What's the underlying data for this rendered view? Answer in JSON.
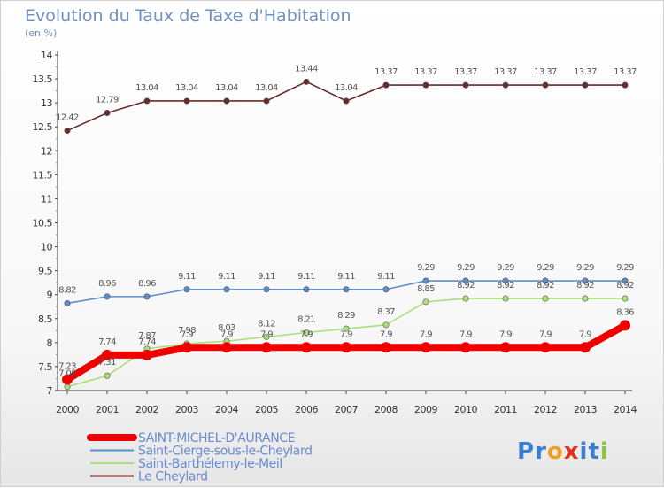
{
  "chart_data": {
    "type": "line",
    "title": "Evolution du Taux de Taxe d'Habitation",
    "subtitle": "(en %)",
    "x": [
      "2000",
      "2001",
      "2002",
      "2003",
      "2004",
      "2005",
      "2006",
      "2007",
      "2008",
      "2009",
      "2010",
      "2011",
      "2012",
      "2013",
      "2014"
    ],
    "ylim": [
      7,
      14
    ],
    "yticks": [
      "7",
      "7.5",
      "8",
      "8.5",
      "9",
      "9.5",
      "10",
      "10.5",
      "11",
      "11.5",
      "12",
      "12.5",
      "13",
      "13.5",
      "14"
    ],
    "grid": false,
    "legend_position": "bottom-left",
    "series": [
      {
        "name": "Le Cheylard",
        "color": "#6b2a2a",
        "values": [
          12.42,
          12.79,
          13.04,
          13.04,
          13.04,
          13.04,
          13.44,
          13.04,
          13.37,
          13.37,
          13.37,
          13.37,
          13.37,
          13.37,
          13.37
        ],
        "labels": [
          "12.42",
          "12.79",
          "13.04",
          "13.04",
          "13.04",
          "13.04",
          "13.44",
          "13.04",
          "13.37",
          "13.37",
          "13.37",
          "13.37",
          "13.37",
          "13.37",
          "13.37"
        ]
      },
      {
        "name": "Saint-Cierge-sous-le-Cheylard",
        "color": "#5b8fc8",
        "values": [
          8.82,
          8.96,
          8.96,
          9.11,
          9.11,
          9.11,
          9.11,
          9.11,
          9.11,
          9.29,
          9.29,
          9.29,
          9.29,
          9.29,
          9.29
        ],
        "labels": [
          "8.82",
          "8.96",
          "8.96",
          "9.11",
          "9.11",
          "9.11",
          "9.11",
          "9.11",
          "9.11",
          "9.29",
          "9.29",
          "9.29",
          "9.29",
          "9.29",
          "9.29"
        ]
      },
      {
        "name": "Saint-Barthélemy-le-Meil",
        "color": "#a8e07a",
        "values": [
          7.08,
          7.31,
          7.87,
          7.98,
          8.03,
          8.12,
          8.21,
          8.29,
          8.37,
          8.85,
          8.92,
          8.92,
          8.92,
          8.92,
          8.92
        ],
        "labels": [
          "7.08",
          "7.31",
          "7.87",
          "7.98",
          "8.03",
          "8.12",
          "8.21",
          "8.29",
          "8.37",
          "8.85",
          "8.92",
          "8.92",
          "8.92",
          "8.92",
          "8.92"
        ]
      },
      {
        "name": "SAINT-MICHEL-D'AURANCE",
        "color": "#ee0000",
        "values": [
          7.23,
          7.74,
          7.74,
          7.9,
          7.9,
          7.9,
          7.9,
          7.9,
          7.9,
          7.9,
          7.9,
          7.9,
          7.9,
          7.9,
          8.36
        ],
        "labels": [
          "7.23",
          "7.74",
          "7.74",
          "7.9",
          "7.9",
          "7.9",
          "7.9",
          "7.9",
          "7.9",
          "7.9",
          "7.9",
          "7.9",
          "7.9",
          "7.9",
          "8.36"
        ]
      }
    ],
    "legend": [
      {
        "name": "SAINT-MICHEL-D'AURANCE",
        "color": "#ee0000",
        "thick": true
      },
      {
        "name": "Saint-Cierge-sous-le-Cheylard",
        "color": "#5b8fc8",
        "thick": false
      },
      {
        "name": "Saint-Barthélemy-le-Meil",
        "color": "#a8e07a",
        "thick": false
      },
      {
        "name": "Le Cheylard",
        "color": "#6b2a2a",
        "thick": false
      }
    ]
  },
  "logo": {
    "letters": [
      "P",
      "r",
      "o",
      "x",
      "i",
      "t",
      "i"
    ],
    "colors": [
      "#3a7fd0",
      "#3a7fd0",
      "#f0a020",
      "#e03020",
      "#3a7fd0",
      "#3a7fd0",
      "#8cc63f"
    ]
  }
}
